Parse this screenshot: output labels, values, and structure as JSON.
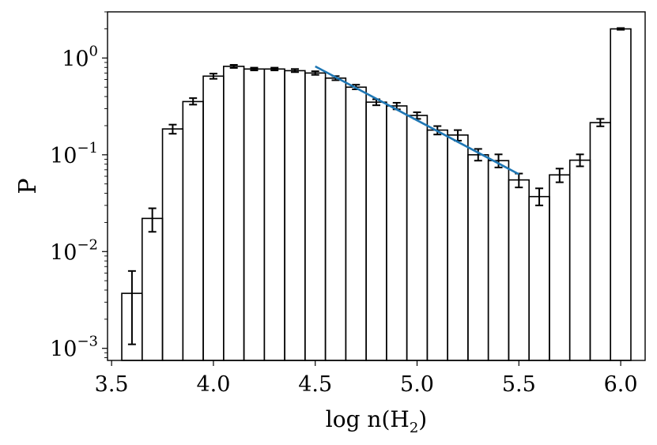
{
  "chart_data": {
    "type": "bar",
    "bar_style": "histogram-step-outline",
    "xlabel": "log n(H2)",
    "ylabel": "P",
    "yscale": "log",
    "xlim": [
      3.48,
      6.12
    ],
    "ylim": [
      0.00075,
      3.0
    ],
    "x_ticks": [
      3.5,
      4.0,
      4.5,
      5.0,
      5.5,
      6.0
    ],
    "x_tick_labels": [
      "3.5",
      "4.0",
      "4.5",
      "5.0",
      "5.5",
      "6.0"
    ],
    "y_ticks": [
      0.001,
      0.01,
      0.1,
      1
    ],
    "y_tick_labels": [
      {
        "base": "10",
        "exp": "−3"
      },
      {
        "base": "10",
        "exp": "−2"
      },
      {
        "base": "10",
        "exp": "−1"
      },
      {
        "base": "10",
        "exp": "0"
      }
    ],
    "bin_width": 0.1,
    "x": [
      3.6,
      3.7,
      3.8,
      3.9,
      4.0,
      4.1,
      4.2,
      4.3,
      4.4,
      4.5,
      4.6,
      4.7,
      4.8,
      4.9,
      5.0,
      5.1,
      5.2,
      5.3,
      5.4,
      5.5,
      5.6,
      5.7,
      5.8,
      5.9,
      6.0
    ],
    "values": [
      0.0037,
      0.022,
      0.185,
      0.355,
      0.65,
      0.82,
      0.77,
      0.77,
      0.74,
      0.7,
      0.62,
      0.5,
      0.35,
      0.32,
      0.255,
      0.18,
      0.16,
      0.1,
      0.087,
      0.055,
      0.037,
      0.062,
      0.088,
      0.215,
      2.0
    ],
    "error_low": [
      0.0011,
      0.016,
      0.165,
      0.33,
      0.61,
      0.79,
      0.745,
      0.745,
      0.715,
      0.67,
      0.59,
      0.475,
      0.325,
      0.295,
      0.235,
      0.162,
      0.14,
      0.087,
      0.074,
      0.046,
      0.03,
      0.052,
      0.076,
      0.197,
      1.96
    ],
    "error_high": [
      0.0063,
      0.028,
      0.205,
      0.385,
      0.69,
      0.85,
      0.795,
      0.795,
      0.77,
      0.73,
      0.65,
      0.53,
      0.375,
      0.345,
      0.275,
      0.198,
      0.18,
      0.115,
      0.101,
      0.064,
      0.045,
      0.072,
      0.101,
      0.235,
      2.04
    ],
    "fit_line": {
      "color": "#1f77b4",
      "x": [
        4.5,
        5.5
      ],
      "y": [
        0.82,
        0.063
      ]
    },
    "grid": false,
    "legend": "none"
  }
}
